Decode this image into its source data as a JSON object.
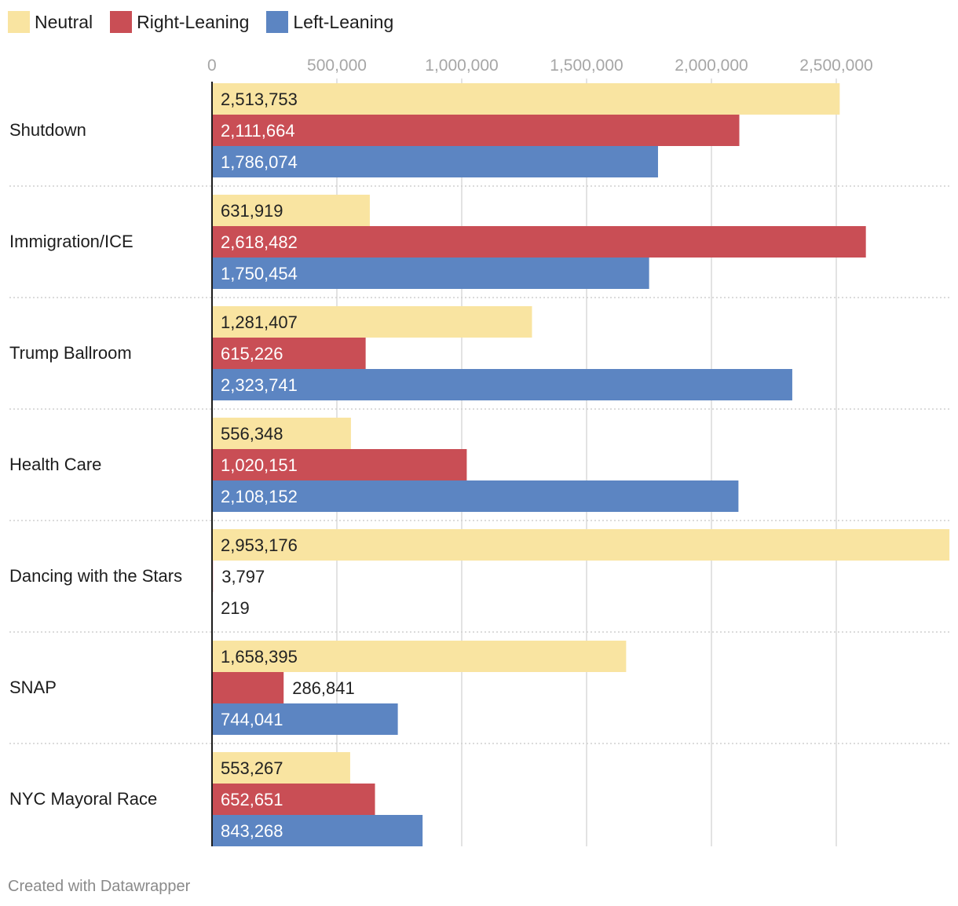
{
  "chart_data": {
    "type": "bar",
    "orientation": "horizontal",
    "grouped": true,
    "title": "",
    "xlabel": "",
    "ylabel": "",
    "xlim": [
      0,
      2953176
    ],
    "x_ticks": [
      0,
      500000,
      1000000,
      1500000,
      2000000,
      2500000
    ],
    "x_tick_labels": [
      "0",
      "500,000",
      "1,000,000",
      "1,500,000",
      "2,000,000",
      "2,500,000"
    ],
    "grid": "vertical",
    "legend_position": "top-left",
    "categories": [
      "Shutdown",
      "Immigration/ICE",
      "Trump Ballroom",
      "Health Care",
      "Dancing with the Stars",
      "SNAP",
      "NYC Mayoral Race"
    ],
    "series": [
      {
        "name": "Neutral",
        "color": "#f9e4a1",
        "label_color": "#222222",
        "values": [
          2513753,
          631919,
          1281407,
          556348,
          2953176,
          1658395,
          553267
        ],
        "labels": [
          "2,513,753",
          "631,919",
          "1,281,407",
          "556,348",
          "2,953,176",
          "1,658,395",
          "553,267"
        ]
      },
      {
        "name": "Right-Leaning",
        "color": "#c94e55",
        "label_color": "#ffffff",
        "values": [
          2111664,
          2618482,
          615226,
          1020151,
          3797,
          286841,
          652651
        ],
        "labels": [
          "2,111,664",
          "2,618,482",
          "615,226",
          "1,020,151",
          "3,797",
          "286,841",
          "652,651"
        ]
      },
      {
        "name": "Left-Leaning",
        "color": "#5c85c2",
        "label_color": "#ffffff",
        "values": [
          1786074,
          1750454,
          2323741,
          2108152,
          219,
          744041,
          843268
        ],
        "labels": [
          "1,786,074",
          "1,750,454",
          "2,323,741",
          "2,108,152",
          "219",
          "744,041",
          "843,268"
        ]
      }
    ]
  },
  "legend": [
    {
      "label": "Neutral",
      "color": "#f9e4a1"
    },
    {
      "label": "Right-Leaning",
      "color": "#c94e55"
    },
    {
      "label": "Left-Leaning",
      "color": "#5c85c2"
    }
  ],
  "footer": {
    "credit": "Created with Datawrapper"
  }
}
